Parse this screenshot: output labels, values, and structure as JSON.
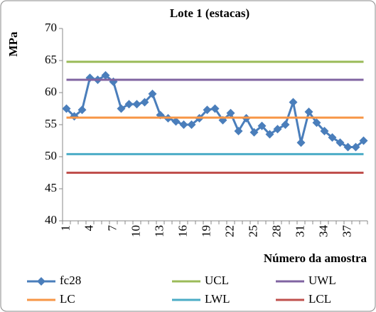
{
  "chart_data": {
    "type": "line",
    "title": "Lote 1 (estacas)",
    "y_label": "MPa",
    "x_label": "Número da amostra",
    "categories": [
      "1",
      null,
      null,
      "4",
      null,
      null,
      "7",
      null,
      null,
      "10",
      null,
      null,
      "13",
      null,
      null,
      "16",
      null,
      null,
      "19",
      null,
      null,
      "22",
      null,
      null,
      "25",
      null,
      null,
      "28",
      null,
      null,
      "31",
      null,
      null,
      "34",
      null,
      null,
      "37",
      null,
      null
    ],
    "series": [
      {
        "name": "fc28",
        "color": "#4a7ebb",
        "marker": "diamond",
        "values": [
          57.5,
          56.3,
          57.3,
          62.3,
          62.0,
          62.7,
          61.7,
          57.5,
          58.2,
          58.2,
          58.5,
          59.8,
          56.5,
          56.0,
          55.5,
          55.0,
          55.0,
          56.0,
          57.3,
          57.5,
          55.7,
          56.8,
          54.0,
          56.0,
          53.8,
          54.8,
          53.5,
          54.3,
          55.0,
          58.5,
          52.2,
          57.0,
          55.3,
          54.0,
          53.0,
          52.2,
          51.5,
          51.5,
          52.5
        ]
      },
      {
        "name": "UCL",
        "color": "#9bbb59",
        "values": [
          64.8,
          64.8,
          64.8,
          64.8,
          64.8,
          64.8,
          64.8,
          64.8,
          64.8,
          64.8,
          64.8,
          64.8,
          64.8,
          64.8,
          64.8,
          64.8,
          64.8,
          64.8,
          64.8,
          64.8,
          64.8,
          64.8,
          64.8,
          64.8,
          64.8,
          64.8,
          64.8,
          64.8,
          64.8,
          64.8,
          64.8,
          64.8,
          64.8,
          64.8,
          64.8,
          64.8,
          64.8,
          64.8,
          64.8
        ]
      },
      {
        "name": "UWL",
        "color": "#8064a2",
        "values": [
          62.0,
          62.0,
          62.0,
          62.0,
          62.0,
          62.0,
          62.0,
          62.0,
          62.0,
          62.0,
          62.0,
          62.0,
          62.0,
          62.0,
          62.0,
          62.0,
          62.0,
          62.0,
          62.0,
          62.0,
          62.0,
          62.0,
          62.0,
          62.0,
          62.0,
          62.0,
          62.0,
          62.0,
          62.0,
          62.0,
          62.0,
          62.0,
          62.0,
          62.0,
          62.0,
          62.0,
          62.0,
          62.0,
          62.0
        ]
      },
      {
        "name": "LC",
        "color": "#f79646",
        "values": [
          56.1,
          56.1,
          56.1,
          56.1,
          56.1,
          56.1,
          56.1,
          56.1,
          56.1,
          56.1,
          56.1,
          56.1,
          56.1,
          56.1,
          56.1,
          56.1,
          56.1,
          56.1,
          56.1,
          56.1,
          56.1,
          56.1,
          56.1,
          56.1,
          56.1,
          56.1,
          56.1,
          56.1,
          56.1,
          56.1,
          56.1,
          56.1,
          56.1,
          56.1,
          56.1,
          56.1,
          56.1,
          56.1,
          56.1
        ]
      },
      {
        "name": "LWL",
        "color": "#4bacc6",
        "values": [
          50.4,
          50.4,
          50.4,
          50.4,
          50.4,
          50.4,
          50.4,
          50.4,
          50.4,
          50.4,
          50.4,
          50.4,
          50.4,
          50.4,
          50.4,
          50.4,
          50.4,
          50.4,
          50.4,
          50.4,
          50.4,
          50.4,
          50.4,
          50.4,
          50.4,
          50.4,
          50.4,
          50.4,
          50.4,
          50.4,
          50.4,
          50.4,
          50.4,
          50.4,
          50.4,
          50.4,
          50.4,
          50.4,
          50.4
        ]
      },
      {
        "name": "LCL",
        "color": "#c0504d",
        "values": [
          47.5,
          47.5,
          47.5,
          47.5,
          47.5,
          47.5,
          47.5,
          47.5,
          47.5,
          47.5,
          47.5,
          47.5,
          47.5,
          47.5,
          47.5,
          47.5,
          47.5,
          47.5,
          47.5,
          47.5,
          47.5,
          47.5,
          47.5,
          47.5,
          47.5,
          47.5,
          47.5,
          47.5,
          47.5,
          47.5,
          47.5,
          47.5,
          47.5,
          47.5,
          47.5,
          47.5,
          47.5,
          47.5,
          47.5
        ]
      }
    ],
    "ylim": [
      40,
      70
    ],
    "yticks": [
      40,
      45,
      50,
      55,
      60,
      65,
      70
    ],
    "grid": false,
    "legend": "bottom"
  }
}
